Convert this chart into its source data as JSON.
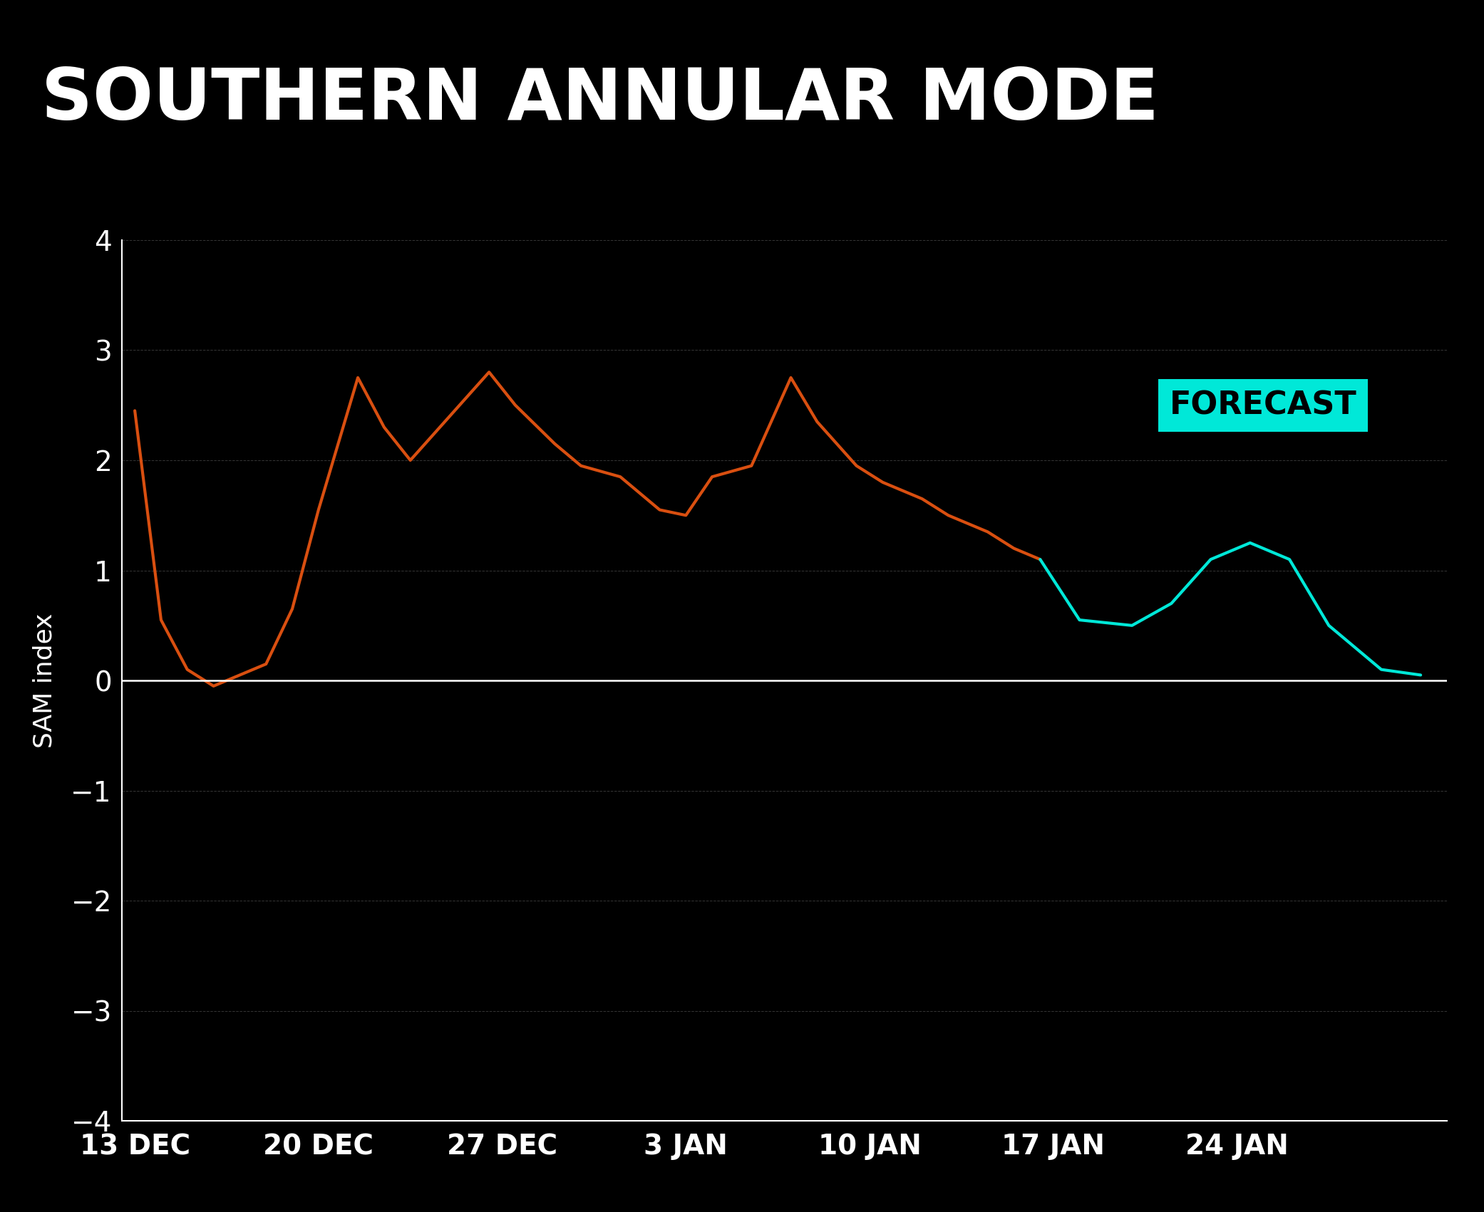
{
  "title": "SOUTHERN ANNULAR MODE",
  "ylabel": "SAM index",
  "bg_color": "#000000",
  "title_bg_color": "#060608",
  "sep_color": "#0d2040",
  "title_color": "#ffffff",
  "axis_color": "#ffffff",
  "grid_color": "#606060",
  "line_color_observed": "#d94f10",
  "line_color_forecast": "#00e8d8",
  "forecast_label": "FORECAST",
  "forecast_label_bg": "#00e8d8",
  "forecast_label_color": "#000000",
  "ylim": [
    -4,
    4
  ],
  "yticks": [
    -4,
    -3,
    -2,
    -1,
    0,
    1,
    2,
    3,
    4
  ],
  "observed_x": [
    0,
    2,
    4,
    6,
    8,
    10,
    12,
    14,
    17,
    19,
    21,
    24,
    27,
    29,
    32,
    34,
    37,
    40,
    42,
    44,
    47,
    50,
    52,
    55,
    57,
    60,
    62,
    65,
    67,
    69
  ],
  "observed_y": [
    2.45,
    0.55,
    0.1,
    -0.05,
    0.05,
    0.15,
    0.65,
    1.55,
    2.75,
    2.3,
    2.0,
    2.4,
    2.8,
    2.5,
    2.15,
    1.95,
    1.85,
    1.55,
    1.5,
    1.85,
    1.95,
    2.75,
    2.35,
    1.95,
    1.8,
    1.65,
    1.5,
    1.35,
    1.2,
    1.1
  ],
  "forecast_x": [
    69,
    72,
    76,
    79,
    82,
    85,
    88,
    91,
    95,
    98
  ],
  "forecast_y": [
    1.1,
    0.55,
    0.5,
    0.7,
    1.1,
    1.25,
    1.1,
    0.5,
    0.1,
    0.05
  ],
  "x_positions": [
    0,
    14,
    28,
    42,
    56,
    70,
    84
  ],
  "x_labels": [
    "13 DEC",
    "20 DEC",
    "27 DEC",
    "3 JAN",
    "10 JAN",
    "17 JAN",
    "24 JAN"
  ],
  "line_width": 3.0,
  "title_fontsize": 72,
  "axis_fontsize": 26,
  "tick_fontsize": 28
}
